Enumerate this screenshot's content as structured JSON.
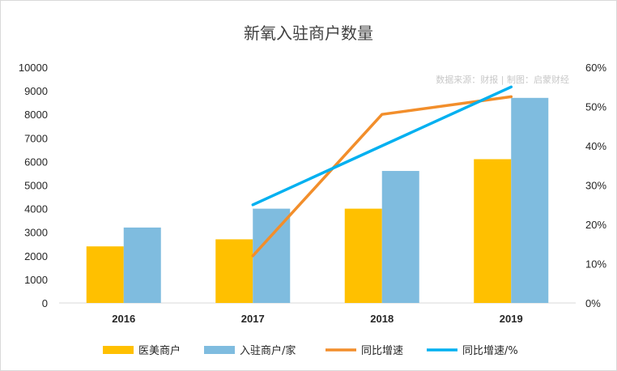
{
  "chart_data": {
    "type": "bar",
    "title": "新氧入驻商户数量",
    "source_note": "数据来源：财报 | 制图：启蒙财经",
    "categories": [
      "2016",
      "2017",
      "2018",
      "2019"
    ],
    "y_left": {
      "min": 0,
      "max": 10000,
      "step": 1000,
      "tick_labels": [
        "0",
        "1000",
        "2000",
        "3000",
        "4000",
        "5000",
        "6000",
        "7000",
        "8000",
        "9000",
        "10000"
      ]
    },
    "y_right": {
      "min": 0,
      "max": 60,
      "step": 10,
      "tick_labels": [
        "0%",
        "10%",
        "20%",
        "30%",
        "40%",
        "50%",
        "60%"
      ]
    },
    "series": [
      {
        "name": "医美商户",
        "kind": "bar",
        "axis": "left",
        "color": "#FFC000",
        "values": [
          2400,
          2700,
          4000,
          6100
        ]
      },
      {
        "name": "入驻商户/家",
        "kind": "bar",
        "axis": "left",
        "color": "#7FBCDF",
        "values": [
          3200,
          4000,
          5600,
          8700
        ]
      },
      {
        "name": "同比增速",
        "kind": "line",
        "axis": "right",
        "color": "#F28E2B",
        "values": [
          null,
          12,
          48,
          52.5
        ]
      },
      {
        "name": "同比增速/%",
        "kind": "line",
        "axis": "right",
        "color": "#00B0F0",
        "values": [
          null,
          25,
          40,
          55
        ]
      }
    ],
    "grid": false,
    "legend_position": "bottom"
  }
}
